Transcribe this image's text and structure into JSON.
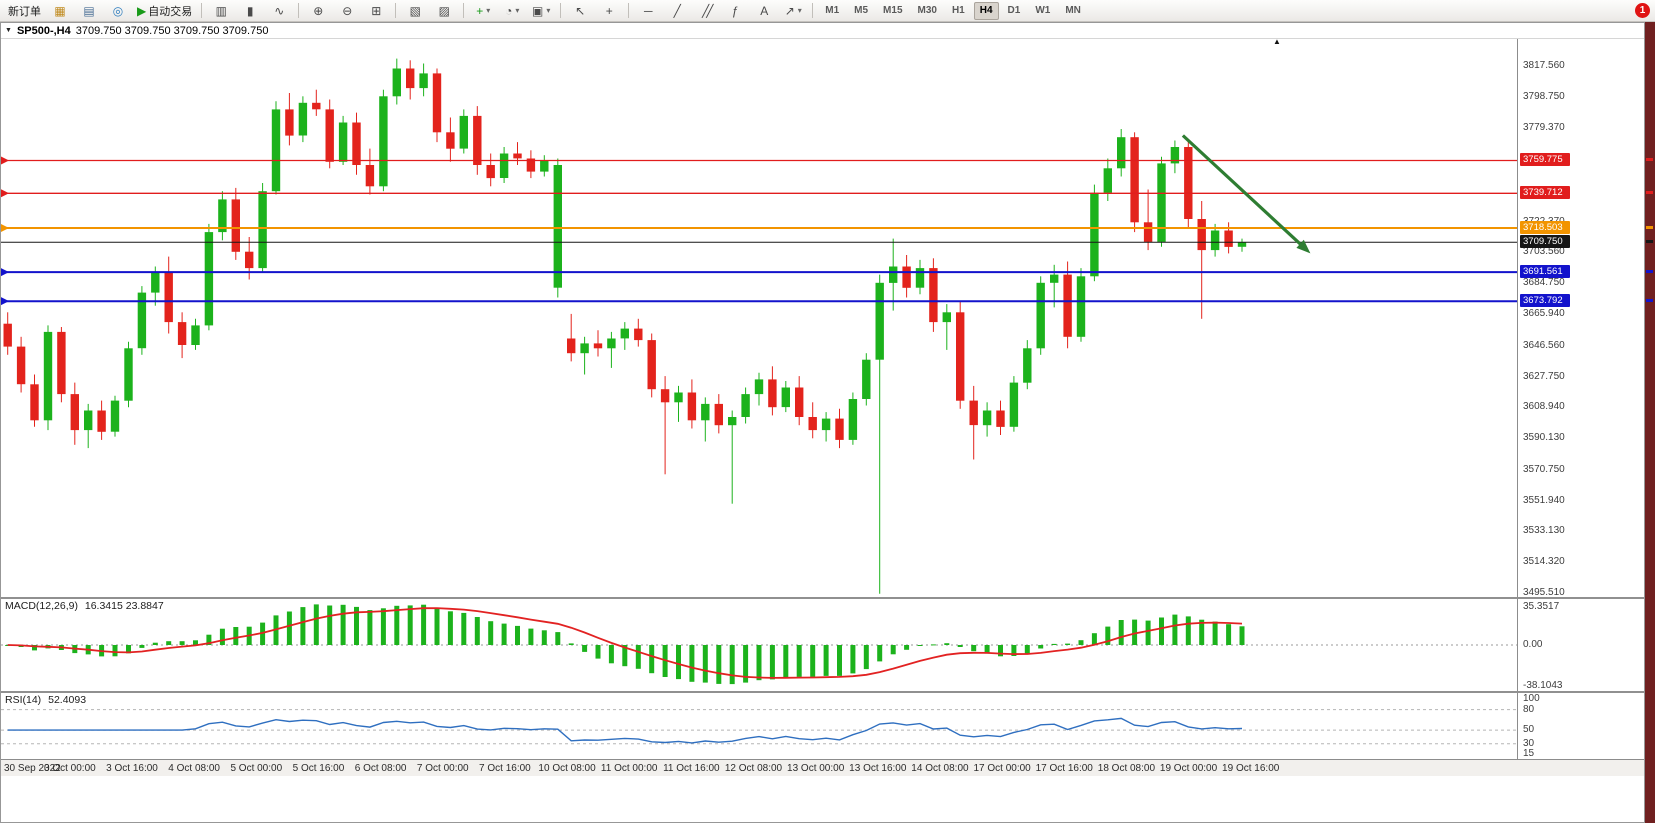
{
  "toolbar": {
    "caret_icon": "▾",
    "notification_count": "1",
    "timeframes": [
      "M1",
      "M5",
      "M15",
      "M30",
      "H1",
      "H4",
      "D1",
      "W1",
      "MN"
    ],
    "active_timeframe": "H4",
    "items": [
      {
        "kind": "text",
        "name": "new-order-button",
        "label": "新订单"
      },
      {
        "kind": "icon",
        "name": "profile-icon",
        "glyph": "▦",
        "color": "#c08a1e"
      },
      {
        "kind": "icon",
        "name": "market-depth-icon",
        "glyph": "▤",
        "color": "#4a6f96"
      },
      {
        "kind": "icon",
        "name": "community-icon",
        "glyph": "◎",
        "color": "#2e7dbe"
      },
      {
        "kind": "textIcon",
        "name": "autotrading-button",
        "glyph": "▶",
        "color": "#189a18",
        "label": "自动交易"
      },
      {
        "kind": "sep"
      },
      {
        "kind": "icon",
        "name": "bar-chart-icon",
        "glyph": "▥"
      },
      {
        "kind": "icon",
        "name": "candlestick-icon",
        "glyph": "▮"
      },
      {
        "kind": "icon",
        "name": "line-chart-icon",
        "glyph": "∿"
      },
      {
        "kind": "sep"
      },
      {
        "kind": "icon",
        "name": "zoom-in-icon",
        "glyph": "⊕"
      },
      {
        "kind": "icon",
        "name": "zoom-out-icon",
        "glyph": "⊖"
      },
      {
        "kind": "icon",
        "name": "tile-windows-icon",
        "glyph": "⊞"
      },
      {
        "kind": "sep"
      },
      {
        "kind": "icon",
        "name": "arrange-windows-icon",
        "glyph": "▧"
      },
      {
        "kind": "icon",
        "name": "cascade-windows-icon",
        "glyph": "▨"
      },
      {
        "kind": "sep"
      },
      {
        "kind": "iconCaret",
        "name": "add-indicator-button",
        "glyph": "+",
        "color": "#189a18"
      },
      {
        "kind": "iconCaret",
        "name": "period-button",
        "glyph": "◔"
      },
      {
        "kind": "iconCaret",
        "name": "template-button",
        "glyph": "▣"
      },
      {
        "kind": "sep"
      },
      {
        "kind": "icon",
        "name": "cursor-icon",
        "glyph": "↖"
      },
      {
        "kind": "icon",
        "name": "crosshair-icon",
        "glyph": "+"
      },
      {
        "kind": "sep"
      },
      {
        "kind": "icon",
        "name": "horizontal-line-icon",
        "glyph": "─"
      },
      {
        "kind": "icon",
        "name": "trendline-icon",
        "glyph": "╱"
      },
      {
        "kind": "icon",
        "name": "equidistant-channel-icon",
        "glyph": "╱╱"
      },
      {
        "kind": "icon",
        "name": "fibonacci-icon",
        "glyph": "ƒ"
      },
      {
        "kind": "icon",
        "name": "text-label-icon",
        "glyph": "A"
      },
      {
        "kind": "iconCaret",
        "name": "arrow-objects-icon",
        "glyph": "↗"
      },
      {
        "kind": "sep"
      }
    ]
  },
  "chart": {
    "menu_icon": "▼",
    "shift_icon": "▲",
    "title": "SP500-,H4",
    "ohlc": "3709.750 3709.750 3709.750 3709.750",
    "macd_label": "MACD(12,26,9)",
    "macd_values": "16.3415 23.8847",
    "rsi_label": "RSI(14)",
    "rsi_value": "52.4093"
  },
  "chart_data": {
    "type": "candlestick",
    "symbol": "SP500-",
    "timeframe": "H4",
    "colors": {
      "up": "#1cb21c",
      "down": "#e3231c",
      "macd_signal": "#e22222",
      "rsi_line": "#2f6fc0",
      "arrow": "#2e7d32"
    },
    "candles": [
      [
        3660,
        3667,
        3641,
        3646
      ],
      [
        3646,
        3652,
        3618,
        3623
      ],
      [
        3623,
        3629,
        3597,
        3601
      ],
      [
        3601,
        3659,
        3595,
        3655
      ],
      [
        3655,
        3658,
        3612,
        3617
      ],
      [
        3617,
        3624,
        3586,
        3595
      ],
      [
        3595,
        3611,
        3584,
        3607
      ],
      [
        3607,
        3613,
        3589,
        3594
      ],
      [
        3594,
        3616,
        3591,
        3613
      ],
      [
        3613,
        3649,
        3609,
        3645
      ],
      [
        3645,
        3683,
        3641,
        3679
      ],
      [
        3679,
        3695,
        3671,
        3691
      ],
      [
        3691,
        3701,
        3654,
        3661
      ],
      [
        3661,
        3667,
        3639,
        3647
      ],
      [
        3647,
        3663,
        3644,
        3659
      ],
      [
        3659,
        3721,
        3656,
        3716
      ],
      [
        3716,
        3741,
        3711,
        3736
      ],
      [
        3736,
        3743,
        3699,
        3704
      ],
      [
        3704,
        3713,
        3687,
        3694
      ],
      [
        3694,
        3746,
        3691,
        3741
      ],
      [
        3741,
        3796,
        3739,
        3791
      ],
      [
        3791,
        3801,
        3769,
        3775
      ],
      [
        3775,
        3799,
        3771,
        3795
      ],
      [
        3795,
        3803,
        3787,
        3791
      ],
      [
        3791,
        3797,
        3755,
        3759
      ],
      [
        3759,
        3787,
        3757,
        3783
      ],
      [
        3783,
        3789,
        3751,
        3757
      ],
      [
        3757,
        3767,
        3739,
        3744
      ],
      [
        3744,
        3803,
        3741,
        3799
      ],
      [
        3799,
        3822,
        3794,
        3816
      ],
      [
        3816,
        3821,
        3797,
        3804
      ],
      [
        3804,
        3819,
        3799,
        3813
      ],
      [
        3813,
        3816,
        3771,
        3777
      ],
      [
        3777,
        3786,
        3759,
        3767
      ],
      [
        3767,
        3791,
        3764,
        3787
      ],
      [
        3787,
        3793,
        3751,
        3757
      ],
      [
        3757,
        3764,
        3744,
        3749
      ],
      [
        3749,
        3768,
        3746,
        3764
      ],
      [
        3764,
        3771,
        3757,
        3761
      ],
      [
        3761,
        3766,
        3749,
        3753
      ],
      [
        3753,
        3763,
        3750,
        3760
      ],
      [
        3682,
        3761,
        3676,
        3757
      ],
      [
        3651,
        3666,
        3637,
        3642
      ],
      [
        3642,
        3652,
        3629,
        3648
      ],
      [
        3648,
        3656,
        3640,
        3645
      ],
      [
        3645,
        3655,
        3633,
        3651
      ],
      [
        3651,
        3661,
        3644,
        3657
      ],
      [
        3657,
        3663,
        3646,
        3650
      ],
      [
        3650,
        3654,
        3615,
        3620
      ],
      [
        3620,
        3628,
        3568,
        3612
      ],
      [
        3612,
        3622,
        3600,
        3618
      ],
      [
        3618,
        3626,
        3596,
        3601
      ],
      [
        3601,
        3615,
        3588,
        3611
      ],
      [
        3611,
        3617,
        3593,
        3598
      ],
      [
        3598,
        3607,
        3550,
        3603
      ],
      [
        3603,
        3621,
        3599,
        3617
      ],
      [
        3617,
        3630,
        3610,
        3626
      ],
      [
        3626,
        3634,
        3604,
        3609
      ],
      [
        3609,
        3625,
        3606,
        3621
      ],
      [
        3621,
        3628,
        3598,
        3603
      ],
      [
        3603,
        3612,
        3590,
        3595
      ],
      [
        3595,
        3606,
        3588,
        3602
      ],
      [
        3602,
        3608,
        3584,
        3589
      ],
      [
        3589,
        3618,
        3586,
        3614
      ],
      [
        3614,
        3642,
        3610,
        3638
      ],
      [
        3638,
        3690,
        3495,
        3685
      ],
      [
        3685,
        3712,
        3668,
        3695
      ],
      [
        3695,
        3702,
        3676,
        3682
      ],
      [
        3682,
        3699,
        3678,
        3694
      ],
      [
        3694,
        3700,
        3655,
        3661
      ],
      [
        3661,
        3672,
        3644,
        3667
      ],
      [
        3667,
        3674,
        3608,
        3613
      ],
      [
        3613,
        3622,
        3577,
        3598
      ],
      [
        3598,
        3612,
        3591,
        3607
      ],
      [
        3607,
        3613,
        3592,
        3597
      ],
      [
        3597,
        3628,
        3594,
        3624
      ],
      [
        3624,
        3650,
        3620,
        3645
      ],
      [
        3645,
        3689,
        3641,
        3685
      ],
      [
        3685,
        3696,
        3670,
        3690
      ],
      [
        3690,
        3698,
        3645,
        3652
      ],
      [
        3652,
        3694,
        3649,
        3689
      ],
      [
        3689,
        3745,
        3686,
        3740
      ],
      [
        3740,
        3761,
        3735,
        3755
      ],
      [
        3755,
        3779,
        3750,
        3774
      ],
      [
        3774,
        3777,
        3716,
        3722
      ],
      [
        3722,
        3742,
        3705,
        3710
      ],
      [
        3710,
        3762,
        3707,
        3758
      ],
      [
        3758,
        3772,
        3752,
        3768
      ],
      [
        3768,
        3771,
        3718,
        3724
      ],
      [
        3724,
        3735,
        3663,
        3705
      ],
      [
        3705,
        3721,
        3701,
        3717
      ],
      [
        3717,
        3722,
        3703,
        3707
      ],
      [
        3707,
        3712,
        3704,
        3709.75
      ]
    ],
    "hlines": [
      {
        "name": "resistance-line-1",
        "price": 3759.775,
        "label": "3759.775",
        "color": "#e11d1d",
        "width": 1.3
      },
      {
        "name": "resistance-line-2",
        "price": 3739.712,
        "label": "3739.712",
        "color": "#e11d1d",
        "width": 1.3
      },
      {
        "name": "pivot-line",
        "price": 3718.503,
        "label": "3718.503",
        "color": "#f29400",
        "width": 2
      },
      {
        "name": "support-line-1",
        "price": 3691.561,
        "label": "3691.561",
        "color": "#1313cc",
        "width": 2
      },
      {
        "name": "support-line-2",
        "price": 3673.792,
        "label": "3673.792",
        "color": "#1313cc",
        "width": 2
      }
    ],
    "current_price": {
      "price": 3709.75,
      "label": "3709.750",
      "color": "#161616"
    },
    "yticks": [
      {
        "v": 3817.56,
        "label": "3817.560"
      },
      {
        "v": 3798.75,
        "label": "3798.750"
      },
      {
        "v": 3779.37,
        "label": "3779.370"
      },
      {
        "v": 3722.37,
        "label": "3722.370"
      },
      {
        "v": 3703.56,
        "label": "3703.560"
      },
      {
        "v": 3684.75,
        "label": "3684.750"
      },
      {
        "v": 3665.94,
        "label": "3665.940"
      },
      {
        "v": 3646.56,
        "label": "3646.560"
      },
      {
        "v": 3627.75,
        "label": "3627.750"
      },
      {
        "v": 3608.94,
        "label": "3608.940"
      },
      {
        "v": 3590.13,
        "label": "3590.130"
      },
      {
        "v": 3570.75,
        "label": "3570.750"
      },
      {
        "v": 3551.94,
        "label": "3551.940"
      },
      {
        "v": 3533.13,
        "label": "3533.130"
      },
      {
        "v": 3514.32,
        "label": "3514.320"
      },
      {
        "v": 3495.51,
        "label": "3495.510"
      }
    ],
    "xlabels": [
      "30 Sep 2022",
      "3 Oct 00:00",
      "3 Oct 16:00",
      "4 Oct 08:00",
      "5 Oct 00:00",
      "5 Oct 16:00",
      "6 Oct 08:00",
      "7 Oct 00:00",
      "7 Oct 16:00",
      "10 Oct 08:00",
      "11 Oct 00:00",
      "11 Oct 16:00",
      "12 Oct 08:00",
      "13 Oct 00:00",
      "13 Oct 16:00",
      "14 Oct 08:00",
      "17 Oct 00:00",
      "17 Oct 16:00",
      "18 Oct 08:00",
      "19 Oct 00:00",
      "19 Oct 16:00"
    ],
    "arrow": {
      "from_slot": 88.1,
      "from_price": 3775,
      "to_slot": 97.6,
      "to_price": 3703
    },
    "macd": {
      "params": [
        12,
        26,
        9
      ],
      "axis": [
        {
          "v": 35.3517,
          "label": "35.3517"
        },
        {
          "v": 0,
          "label": "0.00"
        },
        {
          "v": -38.1043,
          "label": "-38.1043"
        }
      ]
    },
    "rsi": {
      "period": 14,
      "axis": [
        {
          "v": 100,
          "label": "100"
        },
        {
          "v": 80,
          "label": "80"
        },
        {
          "v": 50,
          "label": "50"
        },
        {
          "v": 30,
          "label": "30"
        },
        {
          "v": 15,
          "label": "15"
        }
      ],
      "levels": [
        80,
        50,
        30
      ]
    }
  }
}
